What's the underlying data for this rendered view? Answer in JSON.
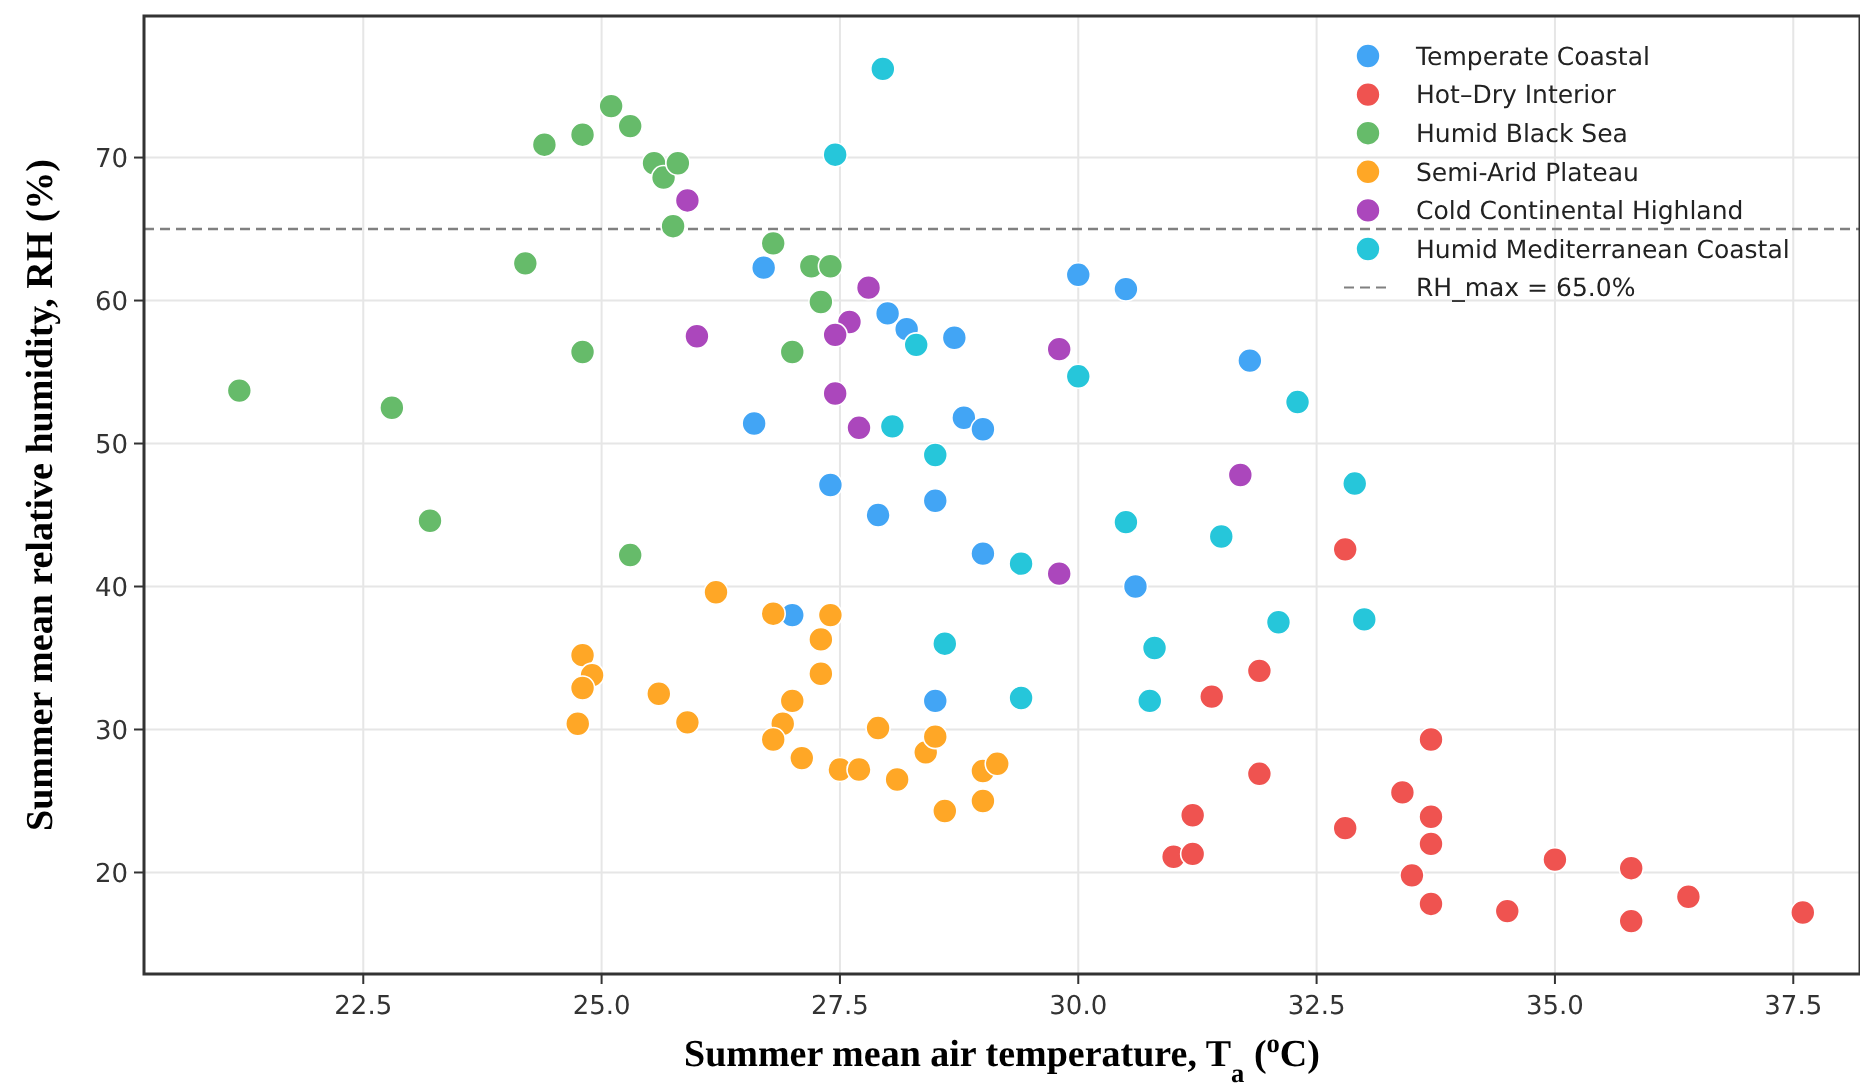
{
  "chart_data": {
    "type": "scatter",
    "xlabel": "Summer mean air temperature, T$_{a}$ ($^{o}$C)",
    "ylabel": "Summer mean relative humidity, RH (%)",
    "xlim": [
      20.2,
      38.2
    ],
    "ylim": [
      12.9,
      79.9
    ],
    "xticks": [
      {
        "value": 22.5,
        "label": "22.5"
      },
      {
        "value": 25,
        "label": "25.0"
      },
      {
        "value": 27.5,
        "label": "27.5"
      },
      {
        "value": 30,
        "label": "30.0"
      },
      {
        "value": 32.5,
        "label": "32.5"
      },
      {
        "value": 35,
        "label": "35.0"
      },
      {
        "value": 37.5,
        "label": "37.5"
      }
    ],
    "yticks": [
      20,
      30,
      40,
      50,
      60,
      70
    ],
    "grid": true,
    "legend": "top right",
    "marker": "circle",
    "ref_lines": [
      {
        "axis": "y",
        "value": 65,
        "label": "RH_max = 65.0%",
        "color": "#808080",
        "line_style": "dashed"
      }
    ],
    "series": [
      {
        "name": "Temperate Coastal",
        "color": "#42a5f5",
        "x": [
          26.7,
          26.6,
          27.4,
          27.0,
          27.9,
          28.0,
          28.2,
          28.7,
          28.8,
          29.0,
          28.5,
          29.0,
          28.5,
          30.0,
          30.5,
          30.6,
          31.8
        ],
        "values": [
          62.3,
          51.4,
          47.1,
          38.0,
          45.0,
          59.1,
          58.0,
          57.4,
          51.8,
          51.0,
          46.0,
          42.3,
          32.0,
          61.8,
          60.8,
          40.0,
          55.8
        ]
      },
      {
        "name": "Hot–Dry Interior",
        "color": "#ef5350",
        "x": [
          32.8,
          31.9,
          31.4,
          31.9,
          31.2,
          31.0,
          31.2,
          33.7,
          33.4,
          32.8,
          33.7,
          33.7,
          33.5,
          33.7,
          34.5,
          35.0,
          35.8,
          35.8,
          36.4,
          37.6
        ],
        "values": [
          42.6,
          34.1,
          32.3,
          26.9,
          24.0,
          21.1,
          21.3,
          29.3,
          25.6,
          23.1,
          23.9,
          22.0,
          19.8,
          17.8,
          17.3,
          20.9,
          20.3,
          16.6,
          18.3,
          17.2
        ]
      },
      {
        "name": "Humid Black Sea",
        "color": "#66bb6a",
        "x": [
          21.2,
          22.8,
          23.2,
          24.2,
          24.4,
          24.8,
          25.1,
          25.3,
          25.55,
          25.65,
          25.8,
          25.75,
          24.8,
          25.3,
          26.8,
          27.2,
          27.4,
          27.3,
          27.0
        ],
        "values": [
          53.7,
          52.5,
          44.6,
          62.6,
          70.9,
          71.6,
          73.6,
          72.2,
          69.6,
          68.6,
          69.6,
          65.2,
          56.4,
          42.2,
          64.0,
          62.4,
          62.4,
          59.9,
          56.4
        ]
      },
      {
        "name": "Semi-Arid Plateau",
        "color": "#ffa726",
        "x": [
          26.2,
          24.8,
          24.9,
          24.8,
          24.75,
          25.6,
          25.9,
          26.8,
          27.4,
          27.3,
          27.3,
          27.0,
          26.9,
          26.8,
          27.1,
          27.5,
          27.7,
          27.9,
          28.1,
          28.4,
          28.5,
          28.6,
          29.0,
          29.15,
          29.0
        ],
        "values": [
          39.6,
          35.2,
          33.8,
          32.9,
          30.4,
          32.5,
          30.5,
          38.1,
          38.0,
          36.3,
          33.9,
          32.0,
          30.4,
          29.3,
          28.0,
          27.2,
          27.2,
          30.1,
          26.5,
          28.4,
          29.5,
          24.3,
          27.1,
          27.6,
          25.0
        ]
      },
      {
        "name": "Cold Continental Highland",
        "color": "#ab47bc",
        "x": [
          25.9,
          26.0,
          27.8,
          27.6,
          27.45,
          27.45,
          27.7,
          29.8,
          29.8,
          31.7
        ],
        "values": [
          67.0,
          57.5,
          60.9,
          58.5,
          57.6,
          53.5,
          51.1,
          56.6,
          40.9,
          47.8
        ]
      },
      {
        "name": "Humid Mediterranean Coastal",
        "color": "#26c6da",
        "x": [
          27.95,
          27.45,
          28.3,
          28.05,
          28.5,
          29.4,
          28.6,
          29.4,
          30.0,
          30.5,
          30.8,
          30.75,
          31.5,
          32.1,
          32.3,
          32.9,
          33.0
        ],
        "values": [
          76.2,
          70.2,
          56.9,
          51.2,
          49.2,
          41.6,
          36.0,
          32.2,
          54.7,
          44.5,
          35.7,
          32.0,
          43.5,
          37.5,
          52.9,
          47.2,
          37.7
        ]
      }
    ]
  }
}
